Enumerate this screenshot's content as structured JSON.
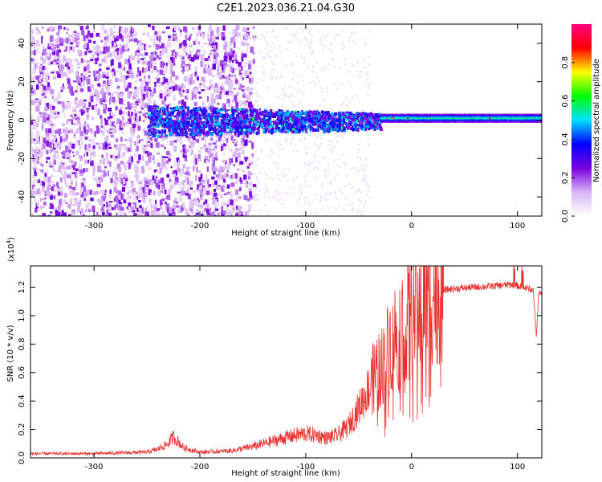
{
  "title": "C2E1.2023.036.21.04.G30",
  "chart_data": [
    {
      "type": "heatmap",
      "xlabel": "Height of straight line (km)",
      "ylabel": "Frequency (Hz)",
      "xlim": [
        -360,
        123
      ],
      "ylim": [
        -50,
        50
      ],
      "x_ticks": [
        -300,
        -200,
        -100,
        0,
        100
      ],
      "y_ticks": [
        -40,
        -20,
        0,
        20,
        40
      ],
      "colorbar": {
        "label": "Normalized spectral amplitude",
        "range": [
          0,
          1
        ],
        "ticks": [
          0.0,
          0.2,
          0.4,
          0.6,
          0.8
        ],
        "colormap": [
          "#ffffff",
          "#d8b4f5",
          "#7b00e0",
          "#0000ff",
          "#00e0ff",
          "#00ff00",
          "#ffff00",
          "#ff0000",
          "#ff0080"
        ]
      },
      "features": [
        {
          "kind": "scattered-noise",
          "x_range": [
            -360,
            -150
          ],
          "freq_range": [
            -50,
            50
          ],
          "amplitude": 0.15
        },
        {
          "kind": "narrow-band",
          "x_range": [
            -250,
            -30
          ],
          "freq_center": 0,
          "freq_halfwidth": 8,
          "amplitude": 0.35
        },
        {
          "kind": "carrier-line",
          "x_range": [
            -30,
            123
          ],
          "freq_center": 1,
          "freq_halfwidth": 2,
          "amplitude": 0.55
        }
      ]
    },
    {
      "type": "line",
      "xlabel": "Height of straight line (km)",
      "ylabel": "SNR (10 * v/v)",
      "y_multiplier": "(x10",
      "y_multiplier_exp": "4",
      "y_multiplier_close": ")",
      "xlim": [
        -360,
        123
      ],
      "ylim": [
        0,
        1.35
      ],
      "x_ticks": [
        -300,
        -200,
        -100,
        0,
        100
      ],
      "y_ticks": [
        0.0,
        0.2,
        0.4,
        0.6,
        0.8,
        1.0,
        1.2
      ],
      "line_color": "#e8312f",
      "series": [
        {
          "x": [
            -360,
            -300,
            -250,
            -240,
            -230,
            -225,
            -215,
            -200,
            -170,
            -150,
            -130,
            -110,
            -100,
            -90,
            -80,
            -70,
            -60,
            -50,
            -40,
            -35,
            -30,
            -25,
            -20,
            -15,
            -10,
            -5,
            0,
            10,
            20,
            30,
            40,
            60,
            80,
            95,
            100,
            105,
            110,
            115,
            118,
            120,
            123
          ],
          "y": [
            0.03,
            0.03,
            0.04,
            0.06,
            0.1,
            0.15,
            0.07,
            0.04,
            0.05,
            0.08,
            0.12,
            0.16,
            0.17,
            0.16,
            0.14,
            0.16,
            0.22,
            0.35,
            0.5,
            0.58,
            0.62,
            0.7,
            0.82,
            0.88,
            0.92,
            0.95,
            1.0,
            1.1,
            1.16,
            1.18,
            1.19,
            1.2,
            1.21,
            1.22,
            1.21,
            1.2,
            1.19,
            1.18,
            0.85,
            1.16,
            1.15
          ]
        }
      ]
    }
  ]
}
